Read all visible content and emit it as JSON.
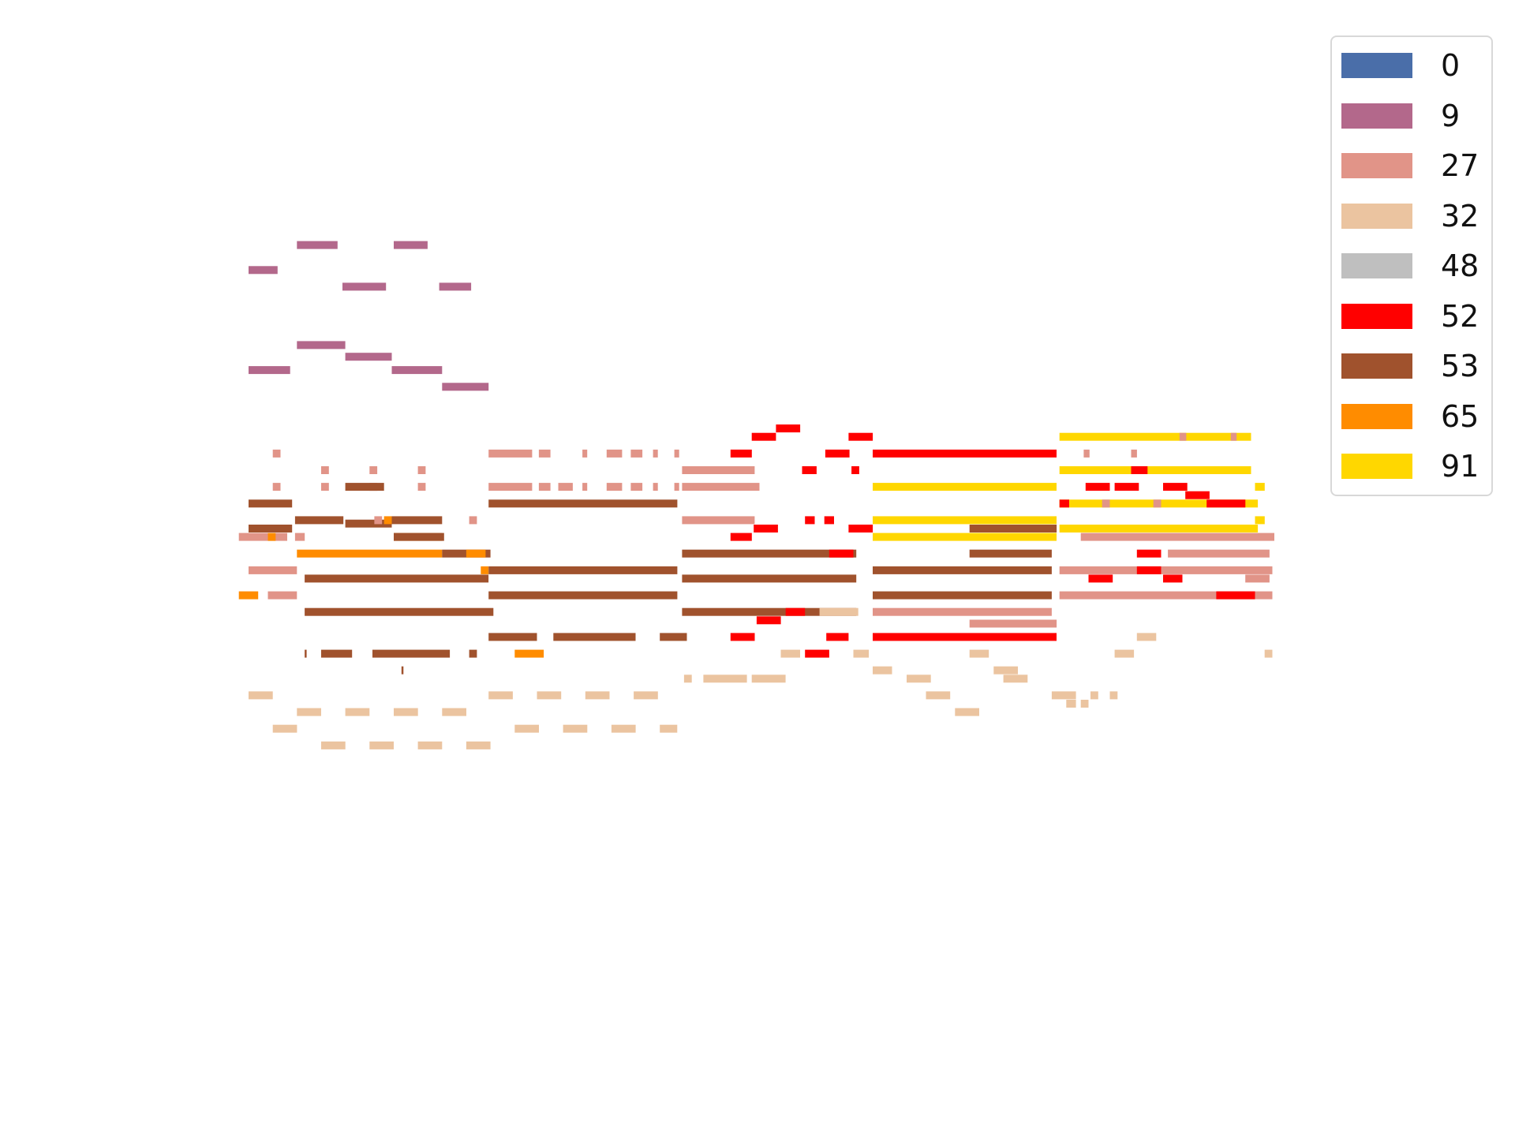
{
  "chart_data": {
    "type": "piano-roll",
    "legend": {
      "title": "",
      "placement": "upper-right"
    },
    "series": [
      {
        "name": "0",
        "color": "#4a6ea9"
      },
      {
        "name": "9",
        "color": "#b3688b"
      },
      {
        "name": "27",
        "color": "#e19488"
      },
      {
        "name": "32",
        "color": "#ebc4a0"
      },
      {
        "name": "48",
        "color": "#bfbfbf"
      },
      {
        "name": "52",
        "color": "#ff0000"
      },
      {
        "name": "53",
        "color": "#a0522d"
      },
      {
        "name": "65",
        "color": "#ff8c00"
      },
      {
        "name": "91",
        "color": "#ffd700"
      }
    ],
    "axes_visible": false,
    "grid": false,
    "xlim": [
      0,
      1060
    ],
    "ylim": [
      0,
      35
    ],
    "notes": [
      {
        "s": "9",
        "x": 0,
        "w": 30,
        "y": 33
      },
      {
        "s": "9",
        "x": 50,
        "w": 42,
        "y": 34.5
      },
      {
        "s": "9",
        "x": 97,
        "w": 45,
        "y": 32
      },
      {
        "s": "9",
        "x": 150,
        "w": 35,
        "y": 34.5
      },
      {
        "s": "9",
        "x": 197,
        "w": 33,
        "y": 32
      },
      {
        "s": "9",
        "x": 0,
        "w": 43,
        "y": 27
      },
      {
        "s": "9",
        "x": 50,
        "w": 50,
        "y": 28.5
      },
      {
        "s": "9",
        "x": 100,
        "w": 48,
        "y": 27.8
      },
      {
        "s": "9",
        "x": 148,
        "w": 52,
        "y": 27
      },
      {
        "s": "9",
        "x": 200,
        "w": 48,
        "y": 26
      },
      {
        "s": "52",
        "x": 520,
        "w": 25,
        "y": 23
      },
      {
        "s": "52",
        "x": 545,
        "w": 25,
        "y": 23.5
      },
      {
        "s": "52",
        "x": 620,
        "w": 25,
        "y": 23
      },
      {
        "s": "91",
        "x": 838,
        "w": 198,
        "y": 23
      },
      {
        "s": "27",
        "x": 962,
        "w": 7,
        "y": 23
      },
      {
        "s": "27",
        "x": 1015,
        "w": 6,
        "y": 23
      },
      {
        "s": "27",
        "x": 25,
        "w": 8,
        "y": 22
      },
      {
        "s": "27",
        "x": 248,
        "w": 45,
        "y": 22
      },
      {
        "s": "27",
        "x": 300,
        "w": 12,
        "y": 22
      },
      {
        "s": "27",
        "x": 345,
        "w": 5,
        "y": 22
      },
      {
        "s": "27",
        "x": 370,
        "w": 16,
        "y": 22
      },
      {
        "s": "27",
        "x": 395,
        "w": 12,
        "y": 22
      },
      {
        "s": "27",
        "x": 418,
        "w": 5,
        "y": 22
      },
      {
        "s": "27",
        "x": 440,
        "w": 5,
        "y": 22
      },
      {
        "s": "52",
        "x": 498,
        "w": 22,
        "y": 22
      },
      {
        "s": "52",
        "x": 596,
        "w": 25,
        "y": 22
      },
      {
        "s": "52",
        "x": 645,
        "w": 190,
        "y": 22
      },
      {
        "s": "27",
        "x": 863,
        "w": 6,
        "y": 22
      },
      {
        "s": "27",
        "x": 912,
        "w": 6,
        "y": 22
      },
      {
        "s": "27",
        "x": 75,
        "w": 8,
        "y": 21
      },
      {
        "s": "27",
        "x": 125,
        "w": 8,
        "y": 21
      },
      {
        "s": "27",
        "x": 175,
        "w": 8,
        "y": 21
      },
      {
        "s": "27",
        "x": 448,
        "w": 75,
        "y": 21
      },
      {
        "s": "52",
        "x": 572,
        "w": 15,
        "y": 21
      },
      {
        "s": "52",
        "x": 623,
        "w": 8,
        "y": 21
      },
      {
        "s": "91",
        "x": 838,
        "w": 198,
        "y": 21
      },
      {
        "s": "52",
        "x": 912,
        "w": 17,
        "y": 21
      },
      {
        "s": "27",
        "x": 25,
        "w": 8,
        "y": 20
      },
      {
        "s": "27",
        "x": 75,
        "w": 8,
        "y": 20
      },
      {
        "s": "27",
        "x": 125,
        "w": 8,
        "y": 20
      },
      {
        "s": "27",
        "x": 175,
        "w": 8,
        "y": 20
      },
      {
        "s": "27",
        "x": 248,
        "w": 45,
        "y": 20
      },
      {
        "s": "27",
        "x": 300,
        "w": 12,
        "y": 20
      },
      {
        "s": "27",
        "x": 320,
        "w": 15,
        "y": 20
      },
      {
        "s": "27",
        "x": 345,
        "w": 5,
        "y": 20
      },
      {
        "s": "27",
        "x": 370,
        "w": 16,
        "y": 20
      },
      {
        "s": "27",
        "x": 395,
        "w": 12,
        "y": 20
      },
      {
        "s": "27",
        "x": 418,
        "w": 5,
        "y": 20
      },
      {
        "s": "27",
        "x": 440,
        "w": 5,
        "y": 20
      },
      {
        "s": "27",
        "x": 448,
        "w": 80,
        "y": 20
      },
      {
        "s": "53",
        "x": 100,
        "w": 40,
        "y": 20
      },
      {
        "s": "91",
        "x": 645,
        "w": 190,
        "y": 20
      },
      {
        "s": "52",
        "x": 865,
        "w": 25,
        "y": 20
      },
      {
        "s": "52",
        "x": 895,
        "w": 25,
        "y": 20
      },
      {
        "s": "52",
        "x": 945,
        "w": 25,
        "y": 20
      },
      {
        "s": "52",
        "x": 968,
        "w": 25,
        "y": 19.5
      },
      {
        "s": "91",
        "x": 1040,
        "w": 10,
        "y": 20
      },
      {
        "s": "53",
        "x": 0,
        "w": 45,
        "y": 19
      },
      {
        "s": "53",
        "x": 248,
        "w": 195,
        "y": 19
      },
      {
        "s": "91",
        "x": 838,
        "w": 205,
        "y": 19
      },
      {
        "s": "52",
        "x": 838,
        "w": 10,
        "y": 19
      },
      {
        "s": "52",
        "x": 990,
        "w": 40,
        "y": 19
      },
      {
        "s": "27",
        "x": 882,
        "w": 8,
        "y": 19
      },
      {
        "s": "27",
        "x": 935,
        "w": 8,
        "y": 19
      },
      {
        "s": "53",
        "x": 48,
        "w": 50,
        "y": 18
      },
      {
        "s": "53",
        "x": 100,
        "w": 48,
        "y": 17.8
      },
      {
        "s": "53",
        "x": 148,
        "w": 52,
        "y": 18
      },
      {
        "s": "53",
        "x": 0,
        "w": 45,
        "y": 17.5
      },
      {
        "s": "65",
        "x": 140,
        "w": 8,
        "y": 18
      },
      {
        "s": "27",
        "x": 130,
        "w": 8,
        "y": 18
      },
      {
        "s": "27",
        "x": 228,
        "w": 8,
        "y": 18
      },
      {
        "s": "27",
        "x": 448,
        "w": 75,
        "y": 18
      },
      {
        "s": "52",
        "x": 522,
        "w": 25,
        "y": 17.5
      },
      {
        "s": "52",
        "x": 595,
        "w": 10,
        "y": 18
      },
      {
        "s": "52",
        "x": 575,
        "w": 10,
        "y": 18
      },
      {
        "s": "52",
        "x": 620,
        "w": 25,
        "y": 17.5
      },
      {
        "s": "91",
        "x": 645,
        "w": 190,
        "y": 18
      },
      {
        "s": "53",
        "x": 745,
        "w": 90,
        "y": 17.5
      },
      {
        "s": "91",
        "x": 838,
        "w": 205,
        "y": 17.5
      },
      {
        "s": "91",
        "x": 1040,
        "w": 10,
        "y": 18
      },
      {
        "s": "27",
        "x": -10,
        "w": 50,
        "y": 17
      },
      {
        "s": "27",
        "x": 48,
        "w": 10,
        "y": 17
      },
      {
        "s": "65",
        "x": 20,
        "w": 8,
        "y": 17
      },
      {
        "s": "65",
        "x": 150,
        "w": 50,
        "y": 17
      },
      {
        "s": "53",
        "x": 150,
        "w": 52,
        "y": 17
      },
      {
        "s": "52",
        "x": 498,
        "w": 22,
        "y": 17
      },
      {
        "s": "91",
        "x": 645,
        "w": 190,
        "y": 17
      },
      {
        "s": "27",
        "x": 860,
        "w": 200,
        "y": 17
      },
      {
        "s": "65",
        "x": 50,
        "w": 150,
        "y": 16
      },
      {
        "s": "53",
        "x": 200,
        "w": 50,
        "y": 16
      },
      {
        "s": "65",
        "x": 225,
        "w": 20,
        "y": 16
      },
      {
        "s": "53",
        "x": 448,
        "w": 180,
        "y": 16
      },
      {
        "s": "52",
        "x": 600,
        "w": 25,
        "y": 16
      },
      {
        "s": "53",
        "x": 745,
        "w": 85,
        "y": 16
      },
      {
        "s": "52",
        "x": 918,
        "w": 25,
        "y": 16
      },
      {
        "s": "27",
        "x": 950,
        "w": 105,
        "y": 16
      },
      {
        "s": "27",
        "x": 0,
        "w": 50,
        "y": 15
      },
      {
        "s": "53",
        "x": 58,
        "w": 190,
        "y": 14.5
      },
      {
        "s": "65",
        "x": 240,
        "w": 8,
        "y": 15
      },
      {
        "s": "53",
        "x": 248,
        "w": 195,
        "y": 15
      },
      {
        "s": "53",
        "x": 448,
        "w": 180,
        "y": 14.5
      },
      {
        "s": "53",
        "x": 645,
        "w": 185,
        "y": 15
      },
      {
        "s": "27",
        "x": 838,
        "w": 220,
        "y": 15
      },
      {
        "s": "52",
        "x": 868,
        "w": 25,
        "y": 14.5
      },
      {
        "s": "52",
        "x": 918,
        "w": 25,
        "y": 15
      },
      {
        "s": "52",
        "x": 945,
        "w": 20,
        "y": 14.5
      },
      {
        "s": "27",
        "x": 1030,
        "w": 25,
        "y": 14.5
      },
      {
        "s": "65",
        "x": -10,
        "w": 20,
        "y": 13.5
      },
      {
        "s": "27",
        "x": 20,
        "w": 30,
        "y": 13.5
      },
      {
        "s": "53",
        "x": 248,
        "w": 195,
        "y": 13.5
      },
      {
        "s": "53",
        "x": 645,
        "w": 185,
        "y": 13.5
      },
      {
        "s": "27",
        "x": 838,
        "w": 220,
        "y": 13.5
      },
      {
        "s": "52",
        "x": 1000,
        "w": 40,
        "y": 13.5
      },
      {
        "s": "53",
        "x": 58,
        "w": 195,
        "y": 12.5
      },
      {
        "s": "53",
        "x": 448,
        "w": 180,
        "y": 12.5
      },
      {
        "s": "52",
        "x": 525,
        "w": 25,
        "y": 12
      },
      {
        "s": "52",
        "x": 555,
        "w": 20,
        "y": 12.5
      },
      {
        "s": "32",
        "x": 590,
        "w": 40,
        "y": 12.5
      },
      {
        "s": "27",
        "x": 645,
        "w": 185,
        "y": 12.5
      },
      {
        "s": "27",
        "x": 745,
        "w": 90,
        "y": 11.8
      },
      {
        "s": "53",
        "x": 248,
        "w": 50,
        "y": 11
      },
      {
        "s": "53",
        "x": 315,
        "w": 85,
        "y": 11
      },
      {
        "s": "53",
        "x": 425,
        "w": 28,
        "y": 11
      },
      {
        "s": "52",
        "x": 498,
        "w": 25,
        "y": 11
      },
      {
        "s": "52",
        "x": 597,
        "w": 23,
        "y": 11
      },
      {
        "s": "52",
        "x": 645,
        "w": 190,
        "y": 11
      },
      {
        "s": "32",
        "x": 918,
        "w": 20,
        "y": 11
      },
      {
        "s": "53",
        "x": 58,
        "w": 2,
        "y": 10
      },
      {
        "s": "53",
        "x": 75,
        "w": 32,
        "y": 10
      },
      {
        "s": "53",
        "x": 128,
        "w": 80,
        "y": 10
      },
      {
        "s": "53",
        "x": 228,
        "w": 8,
        "y": 10
      },
      {
        "s": "65",
        "x": 275,
        "w": 30,
        "y": 10
      },
      {
        "s": "32",
        "x": 550,
        "w": 20,
        "y": 10
      },
      {
        "s": "52",
        "x": 575,
        "w": 25,
        "y": 10
      },
      {
        "s": "32",
        "x": 625,
        "w": 16,
        "y": 10
      },
      {
        "s": "32",
        "x": 745,
        "w": 20,
        "y": 10
      },
      {
        "s": "32",
        "x": 895,
        "w": 20,
        "y": 10
      },
      {
        "s": "32",
        "x": 1050,
        "w": 8,
        "y": 10
      },
      {
        "s": "53",
        "x": 158,
        "w": 2,
        "y": 9
      },
      {
        "s": "32",
        "x": 645,
        "w": 20,
        "y": 9
      },
      {
        "s": "32",
        "x": 770,
        "w": 25,
        "y": 9
      },
      {
        "s": "32",
        "x": 450,
        "w": 8,
        "y": 8.5
      },
      {
        "s": "32",
        "x": 470,
        "w": 45,
        "y": 8.5
      },
      {
        "s": "32",
        "x": 520,
        "w": 35,
        "y": 8.5
      },
      {
        "s": "32",
        "x": 680,
        "w": 25,
        "y": 8.5
      },
      {
        "s": "32",
        "x": 780,
        "w": 25,
        "y": 8.5
      },
      {
        "s": "32",
        "x": 0,
        "w": 25,
        "y": 7.5
      },
      {
        "s": "32",
        "x": 248,
        "w": 25,
        "y": 7.5
      },
      {
        "s": "32",
        "x": 298,
        "w": 25,
        "y": 7.5
      },
      {
        "s": "32",
        "x": 348,
        "w": 25,
        "y": 7.5
      },
      {
        "s": "32",
        "x": 398,
        "w": 25,
        "y": 7.5
      },
      {
        "s": "32",
        "x": 700,
        "w": 25,
        "y": 7.5
      },
      {
        "s": "32",
        "x": 830,
        "w": 25,
        "y": 7.5
      },
      {
        "s": "32",
        "x": 845,
        "w": 10,
        "y": 7
      },
      {
        "s": "32",
        "x": 860,
        "w": 8,
        "y": 7
      },
      {
        "s": "32",
        "x": 870,
        "w": 8,
        "y": 7.5
      },
      {
        "s": "32",
        "x": 890,
        "w": 8,
        "y": 7.5
      },
      {
        "s": "32",
        "x": 50,
        "w": 25,
        "y": 6.5
      },
      {
        "s": "32",
        "x": 100,
        "w": 25,
        "y": 6.5
      },
      {
        "s": "32",
        "x": 150,
        "w": 25,
        "y": 6.5
      },
      {
        "s": "32",
        "x": 200,
        "w": 25,
        "y": 6.5
      },
      {
        "s": "32",
        "x": 730,
        "w": 25,
        "y": 6.5
      },
      {
        "s": "32",
        "x": 25,
        "w": 25,
        "y": 5.5
      },
      {
        "s": "32",
        "x": 275,
        "w": 25,
        "y": 5.5
      },
      {
        "s": "32",
        "x": 325,
        "w": 25,
        "y": 5.5
      },
      {
        "s": "32",
        "x": 375,
        "w": 25,
        "y": 5.5
      },
      {
        "s": "32",
        "x": 425,
        "w": 18,
        "y": 5.5
      },
      {
        "s": "32",
        "x": 75,
        "w": 25,
        "y": 4.5
      },
      {
        "s": "32",
        "x": 125,
        "w": 25,
        "y": 4.5
      },
      {
        "s": "32",
        "x": 175,
        "w": 25,
        "y": 4.5
      },
      {
        "s": "32",
        "x": 225,
        "w": 25,
        "y": 4.5
      }
    ]
  }
}
